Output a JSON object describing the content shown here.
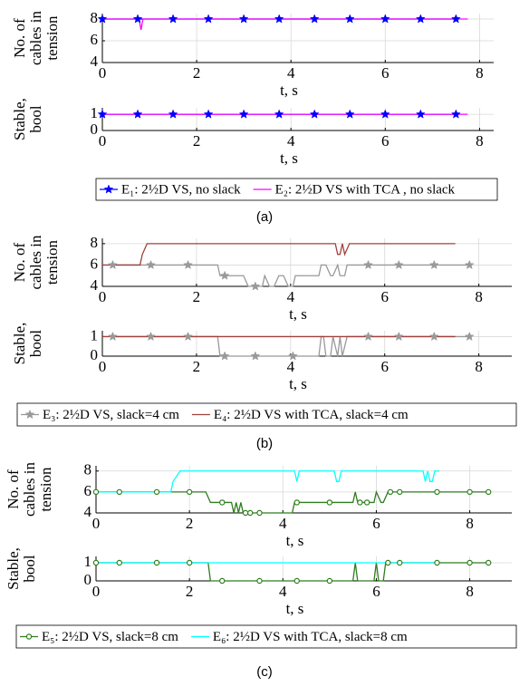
{
  "chart_data": [
    {
      "type": "line",
      "ylabel": [
        "No. of",
        "cables in",
        "tension"
      ],
      "xlabel": "t, s",
      "xlim": [
        0,
        8.3
      ],
      "ylim": [
        4,
        8.5
      ],
      "xticks": [
        0,
        2,
        4,
        6,
        8
      ],
      "yticks": [
        4,
        6,
        8
      ],
      "grid": true,
      "series": [
        {
          "color": "#0000ff",
          "marker": "star",
          "x": [
            0,
            0.75,
            1.5,
            2.25,
            3,
            3.75,
            4.5,
            5.25,
            6,
            6.75,
            7.5
          ],
          "values": [
            8,
            8,
            8,
            8,
            8,
            8,
            8,
            8,
            8,
            8,
            8
          ]
        },
        {
          "color": "#ff00ff",
          "x": [
            0,
            0.78,
            0.82,
            0.86,
            7.75
          ],
          "values": [
            8,
            8,
            7,
            8,
            8
          ]
        }
      ]
    },
    {
      "type": "line",
      "ylabel": [
        "Stable,",
        "bool"
      ],
      "xlabel": "t, s",
      "xlim": [
        0,
        8.3
      ],
      "ylim": [
        0,
        1.4
      ],
      "xticks": [
        0,
        2,
        4,
        6,
        8
      ],
      "yticks": [
        0,
        1
      ],
      "grid": true,
      "legend": "below",
      "caption": "(a)",
      "series": [
        {
          "name": "E₁: 2½D VS, no slack",
          "color": "#0000ff",
          "marker": "star",
          "x": [
            0,
            0.75,
            1.5,
            2.25,
            3,
            3.75,
            4.5,
            5.25,
            6,
            6.75,
            7.5
          ],
          "values": [
            1,
            1,
            1,
            1,
            1,
            1,
            1,
            1,
            1,
            1,
            1
          ]
        },
        {
          "name": "E₂: 2½D VS with TCA , no slack",
          "color": "#ff00ff",
          "x": [
            0,
            7.75
          ],
          "values": [
            1,
            1
          ]
        }
      ]
    },
    {
      "type": "line",
      "ylabel": [
        "No. of",
        "cables in",
        "tension"
      ],
      "xlabel": "t, s",
      "xlim": [
        0,
        8.7
      ],
      "ylim": [
        4,
        8.5
      ],
      "xticks": [
        0,
        2,
        4,
        6,
        8
      ],
      "yticks": [
        4,
        6,
        8
      ],
      "grid": true,
      "series": [
        {
          "color": "#999999",
          "marker": "star",
          "x": [
            0.22,
            1.03,
            1.82,
            2.45,
            2.5,
            2.6,
            3.0,
            3.1,
            3.25,
            3.4,
            3.45,
            3.55,
            3.65,
            3.75,
            3.85,
            3.95,
            4.05,
            4.1,
            4.6,
            4.65,
            4.75,
            4.85,
            4.9,
            5.0,
            5.05,
            5.15,
            5.2,
            5.65,
            6.3,
            7.05,
            7.8
          ],
          "values": [
            6,
            6,
            6,
            6,
            5,
            5,
            5,
            4,
            4,
            4,
            5,
            4,
            4,
            5,
            5,
            4,
            4,
            5,
            5,
            6,
            6,
            5,
            5,
            6,
            5,
            5,
            6,
            6,
            6,
            6,
            6
          ]
        },
        {
          "color": "#a0413c",
          "x": [
            0,
            0.8,
            0.85,
            0.95,
            4.95,
            5.0,
            5.05,
            5.1,
            5.15,
            5.25,
            7.5
          ],
          "values": [
            6,
            6,
            7,
            8,
            8,
            7,
            7,
            8,
            7,
            8,
            8
          ]
        }
      ]
    },
    {
      "type": "line",
      "ylabel": [
        "Stable,",
        "bool"
      ],
      "xlabel": "t, s",
      "xlim": [
        0,
        8.7
      ],
      "ylim": [
        0,
        1.3
      ],
      "xticks": [
        0,
        2,
        4,
        6,
        8
      ],
      "yticks": [
        0,
        1
      ],
      "grid": true,
      "legend": "below",
      "caption": "(b)",
      "series": [
        {
          "name": "E₃: 2½D VS, slack=4 cm",
          "color": "#999999",
          "marker": "star",
          "x": [
            0.22,
            1.03,
            1.82,
            2.45,
            2.5,
            2.6,
            3.25,
            4.05,
            4.6,
            4.65,
            4.7,
            4.75,
            4.85,
            4.9,
            5.0,
            5.05,
            5.1,
            5.2,
            5.65,
            6.3,
            7.05,
            7.8
          ],
          "values": [
            1,
            1,
            1,
            1,
            0,
            0,
            0,
            0,
            0,
            1,
            1,
            0,
            0,
            1,
            0,
            1,
            0,
            1,
            1,
            1,
            1,
            1
          ]
        },
        {
          "name": "E₄: 2½D VS with TCA, slack=4 cm",
          "color": "#a0413c",
          "x": [
            0,
            7.5
          ],
          "values": [
            1,
            1
          ]
        }
      ]
    },
    {
      "type": "line",
      "ylabel": [
        "No. of",
        "cables in",
        "tension"
      ],
      "xlabel": "t, s",
      "xlim": [
        0,
        8.9
      ],
      "ylim": [
        4,
        8.5
      ],
      "xticks": [
        0,
        2,
        4,
        6,
        8
      ],
      "yticks": [
        4,
        6,
        8
      ],
      "grid": true,
      "series": [
        {
          "color": "#2f7d1f",
          "marker": "circle",
          "x": [
            0,
            0.5,
            1.3,
            2.0,
            2.35,
            2.45,
            2.7,
            2.9,
            2.95,
            3.0,
            3.05,
            3.1,
            3.15,
            3.2,
            3.3,
            3.5,
            4.2,
            4.25,
            4.3,
            5.0,
            5.5,
            5.55,
            5.6,
            5.65,
            5.8,
            5.95,
            6.0,
            6.1,
            6.15,
            6.25,
            6.3,
            6.5,
            7.3,
            8.0,
            8.4
          ],
          "values": [
            6,
            6,
            6,
            6,
            6,
            5,
            5,
            5,
            4,
            5,
            4,
            5,
            4,
            4,
            4,
            4,
            4,
            5,
            5,
            5,
            5,
            6,
            5,
            5,
            5,
            5,
            6,
            5,
            5,
            6,
            6,
            6,
            6,
            6,
            6
          ]
        },
        {
          "color": "#00ffff",
          "x": [
            0,
            1.6,
            1.65,
            1.8,
            4.25,
            4.3,
            4.35,
            5.1,
            5.15,
            5.2,
            5.25,
            7.0,
            7.05,
            7.1,
            7.15,
            7.2,
            7.25,
            7.35
          ],
          "values": [
            6,
            6,
            7,
            8,
            8,
            7,
            8,
            8,
            7,
            7,
            8,
            8,
            7,
            8,
            7,
            7,
            8,
            8
          ]
        }
      ]
    },
    {
      "type": "line",
      "ylabel": [
        "Stable,",
        "bool"
      ],
      "xlabel": "t, s",
      "xlim": [
        0,
        8.9
      ],
      "ylim": [
        0,
        1.35
      ],
      "xticks": [
        0,
        2,
        4,
        6,
        8
      ],
      "yticks": [
        0,
        1
      ],
      "grid": true,
      "legend": "below",
      "caption": "(c)",
      "series": [
        {
          "name": "E₅: 2½D VS, slack=8 cm",
          "color": "#2f7d1f",
          "marker": "circle",
          "x": [
            0,
            0.5,
            1.3,
            2.0,
            2.4,
            2.45,
            2.7,
            3.5,
            4.3,
            5.0,
            5.5,
            5.55,
            5.6,
            5.95,
            6.0,
            6.05,
            6.15,
            6.2,
            6.25,
            6.5,
            7.3,
            8.0,
            8.4
          ],
          "values": [
            1,
            1,
            1,
            1,
            1,
            0,
            0,
            0,
            0,
            0,
            0,
            1,
            0,
            0,
            1,
            0,
            0,
            1,
            1,
            1,
            1,
            1,
            1
          ]
        },
        {
          "name": "E₆: 2½D VS with TCA, slack=8 cm",
          "color": "#00ffff",
          "x": [
            0,
            7.35
          ],
          "values": [
            1,
            1
          ]
        }
      ]
    }
  ]
}
